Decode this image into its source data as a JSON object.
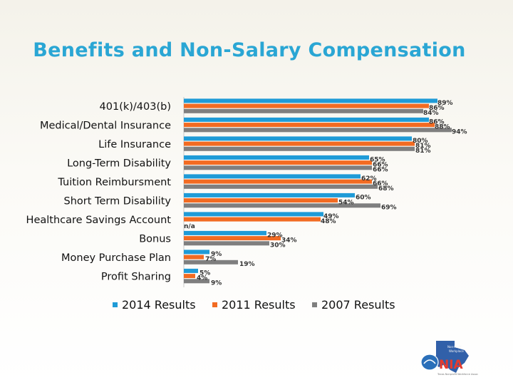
{
  "chart_data": {
    "type": "bar",
    "orientation": "horizontal",
    "title": "Benefits and Non-Salary Compensation",
    "categories": [
      "401(k)/403(b)",
      "Medical/Dental Insurance",
      "Life Insurance",
      "Long-Term Disability",
      "Tuition Reimbursment",
      "Short Term Disability",
      "Healthcare Savings Account",
      "Bonus",
      "Money Purchase Plan",
      "Profit Sharing"
    ],
    "series": [
      {
        "name": "2014 Results",
        "color": "#1f9bd7",
        "values": [
          89,
          86,
          80,
          65,
          62,
          60,
          49,
          29,
          9,
          5
        ],
        "labels": [
          "89%",
          "86%",
          "80%",
          "65%",
          "62%",
          "60%",
          "49%",
          "29%",
          "9%",
          "5%"
        ]
      },
      {
        "name": "2011 Results",
        "color": "#f26b22",
        "values": [
          86,
          88,
          81,
          66,
          66,
          54,
          48,
          34,
          7,
          4
        ],
        "labels": [
          "86%",
          "88%",
          "81%",
          "66%",
          "66%",
          "54%",
          "48%",
          "34%",
          "7%",
          "4%"
        ]
      },
      {
        "name": "2007 Results",
        "color": "#7f7f7f",
        "values": [
          84,
          94,
          81,
          66,
          68,
          69,
          null,
          30,
          19,
          9
        ],
        "labels": [
          "84%",
          "94%",
          "81%",
          "66%",
          "68%",
          "69%",
          "n/a",
          "30%",
          "19%",
          "9%"
        ]
      }
    ],
    "xlim": [
      0,
      100
    ],
    "legend_position": "bottom",
    "xlabel": "",
    "ylabel": ""
  },
  "logo": {
    "line1": "Non-Profit",
    "line2": "Workplace",
    "word": "NIA",
    "tagline": "Texas Nonprofit Workforce Assoc"
  }
}
